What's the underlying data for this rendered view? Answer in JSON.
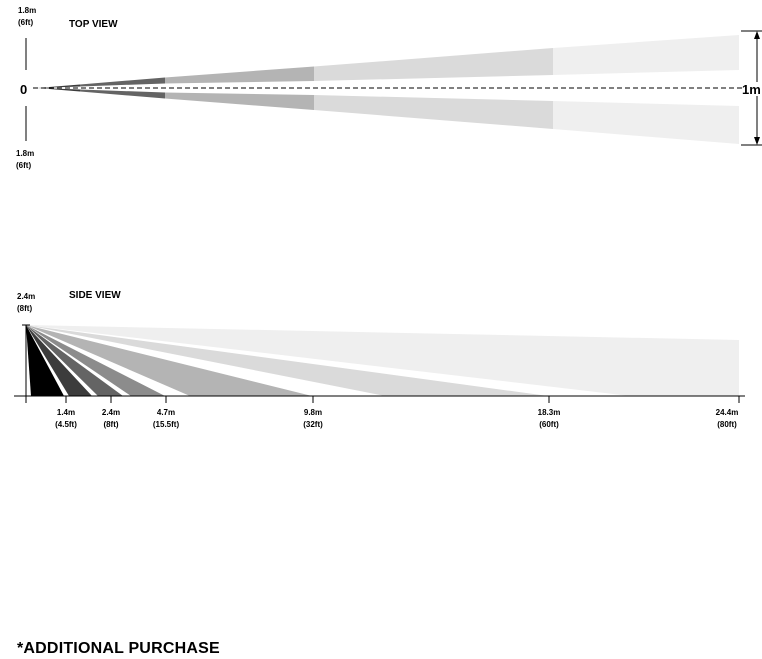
{
  "top_view": {
    "title": "TOP VIEW",
    "width_top": "1.8m",
    "width_top_ft": "(6ft)",
    "width_bottom": "1.8m",
    "width_bottom_ft": "(6ft)",
    "origin": "0",
    "far_label": "1m"
  },
  "side_view": {
    "title": "SIDE VIEW",
    "height": "2.4m",
    "height_ft": "(8ft)",
    "distances": [
      {
        "m": "1.4m",
        "ft": "(4.5ft)"
      },
      {
        "m": "2.4m",
        "ft": "(8ft)"
      },
      {
        "m": "4.7m",
        "ft": "(15.5ft)"
      },
      {
        "m": "9.8m",
        "ft": "(32ft)"
      },
      {
        "m": "18.3m",
        "ft": "(60ft)"
      },
      {
        "m": "24.4m",
        "ft": "(80ft)"
      }
    ]
  },
  "colors": {
    "zone_darkest": "#000000",
    "zone_dark": "#3c3c3c",
    "zone_mid_dark": "#646464",
    "zone_mid": "#8c8c8c",
    "zone_mid_light": "#b4b4b4",
    "zone_light": "#dadada",
    "zone_lightest": "#efefef"
  },
  "footer": "*ADDITIONAL PURCHASE"
}
